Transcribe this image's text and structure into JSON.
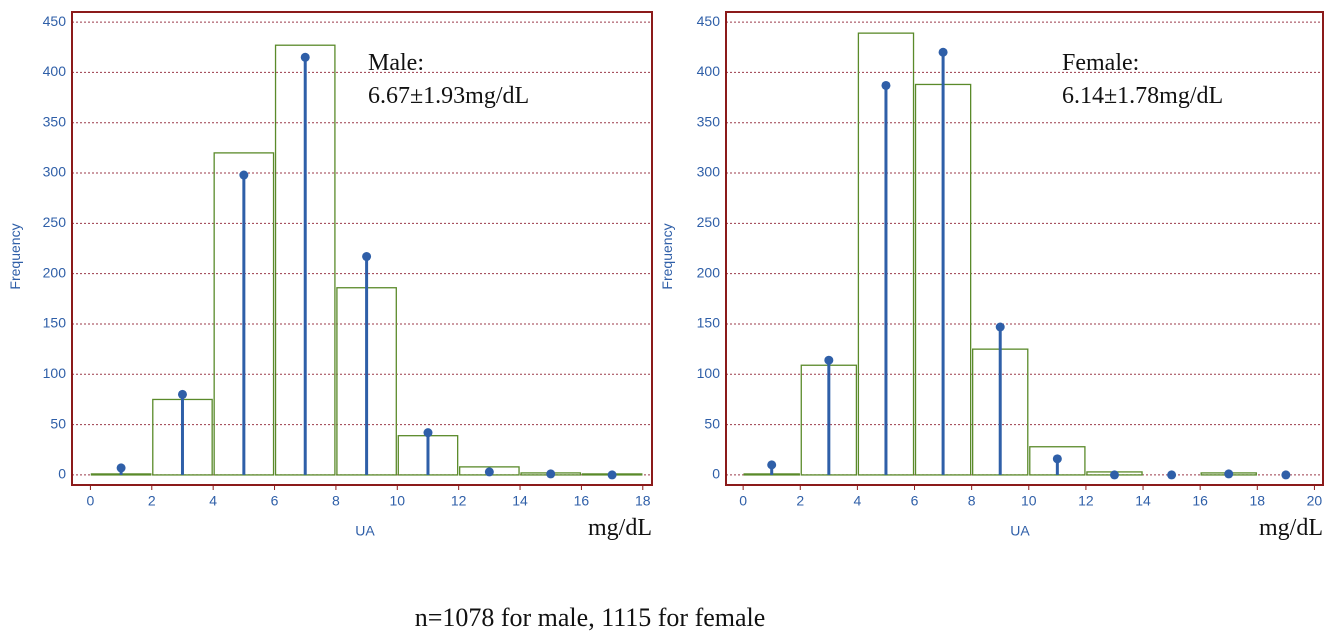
{
  "chart_data": [
    {
      "type": "histogram",
      "bins": [
        0,
        2,
        4,
        6,
        8,
        10,
        12,
        14,
        16,
        18
      ],
      "values": [
        1,
        75,
        320,
        427,
        186,
        39,
        8,
        2,
        1
      ],
      "stem_x": [
        1,
        3,
        5,
        7,
        9,
        11,
        13,
        15,
        17
      ],
      "stem_values": [
        7,
        80,
        298,
        415,
        217,
        42,
        3,
        1,
        0
      ],
      "xlim": [
        -0.6,
        18.3
      ],
      "xticks": [
        0,
        2,
        4,
        6,
        8,
        10,
        12,
        14,
        16,
        18
      ],
      "ylim": [
        -10,
        460
      ],
      "yticks": [
        0,
        50,
        100,
        150,
        200,
        250,
        300,
        350,
        400,
        450
      ],
      "xlabel": "UA",
      "x_unit": "mg/dL",
      "ylabel": "Frequency",
      "annotation": [
        "Male:",
        "6.67±1.93mg/dL"
      ],
      "color": "#5a8a2a",
      "stem_color": "#2f5fa8",
      "frame_color": "#8b1a1a",
      "grid_color": "#9b3a4a",
      "grid": true
    },
    {
      "type": "histogram",
      "bins": [
        0,
        2,
        4,
        6,
        8,
        10,
        12,
        14,
        16,
        18,
        20
      ],
      "values": [
        1,
        109,
        439,
        388,
        125,
        28,
        3,
        0,
        2,
        0
      ],
      "stem_x": [
        1,
        3,
        5,
        7,
        9,
        11,
        13,
        15,
        17,
        19
      ],
      "stem_values": [
        10,
        114,
        387,
        420,
        147,
        16,
        0,
        0,
        1,
        0
      ],
      "xlim": [
        -0.6,
        20.3
      ],
      "xticks": [
        0,
        2,
        4,
        6,
        8,
        10,
        12,
        14,
        16,
        18,
        20
      ],
      "ylim": [
        -10,
        460
      ],
      "yticks": [
        0,
        50,
        100,
        150,
        200,
        250,
        300,
        350,
        400,
        450
      ],
      "xlabel": "UA",
      "x_unit": "mg/dL",
      "ylabel": "Frequency",
      "annotation": [
        "Female:",
        "6.14±1.78mg/dL"
      ],
      "color": "#5a8a2a",
      "stem_color": "#2f5fa8",
      "frame_color": "#8b1a1a",
      "grid_color": "#9b3a4a",
      "grid": true
    }
  ],
  "caption": "n=1078 for male, 1115 for female"
}
